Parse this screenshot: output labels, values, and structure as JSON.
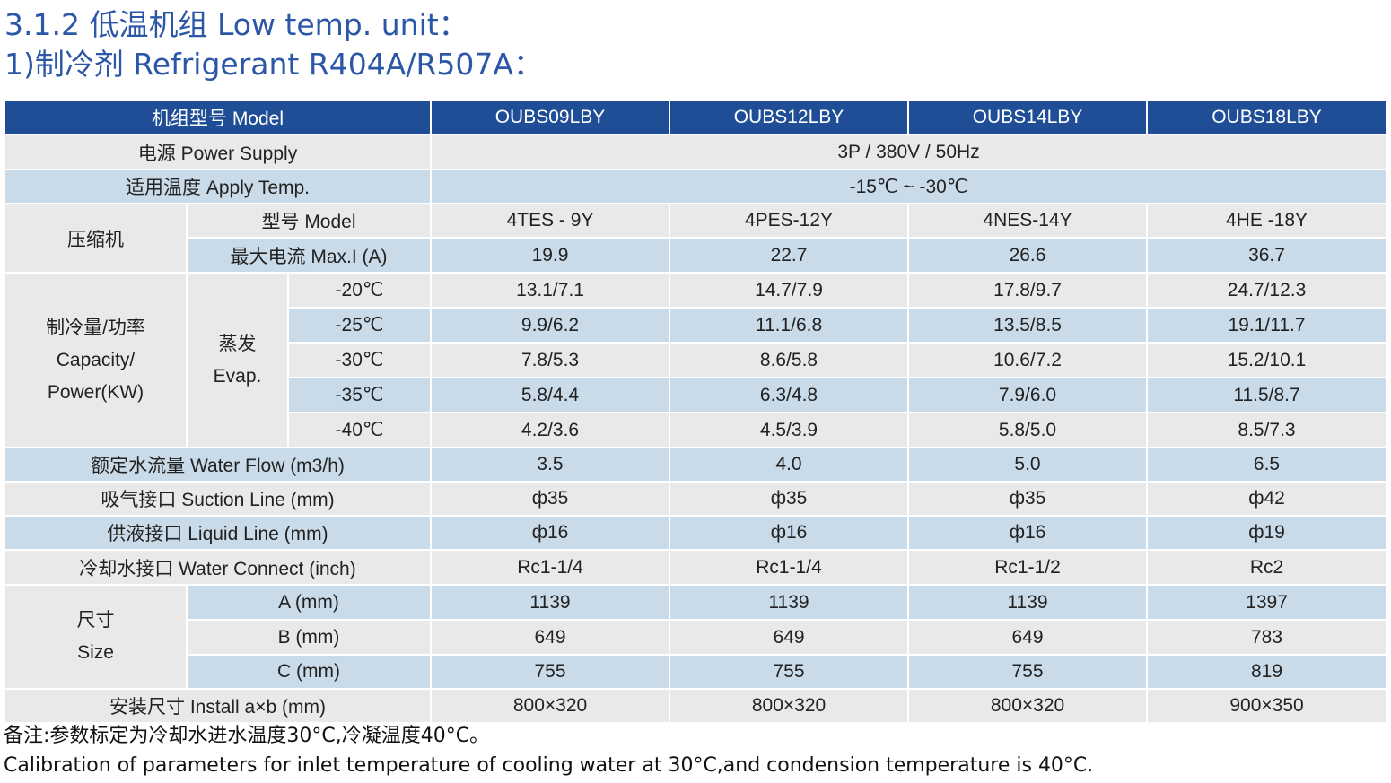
{
  "heading": {
    "line1": "3.1.2 低温机组 Low temp. unit：",
    "line2": "1)制冷剂 Refrigerant  R404A/R507A："
  },
  "table": {
    "model_label": "机组型号 Model",
    "models": [
      "OUBS09LBY",
      "OUBS12LBY",
      "OUBS14LBY",
      "OUBS18LBY"
    ],
    "power_supply": {
      "label": "电源 Power Supply",
      "value": "3P / 380V / 50Hz"
    },
    "apply_temp": {
      "label": "适用温度 Apply Temp.",
      "value": "-15℃ ~ -30℃"
    },
    "compressor": {
      "label": "压缩机",
      "model_label": "型号 Model",
      "models": [
        "4TES - 9Y",
        "4PES-12Y",
        "4NES-14Y",
        "4HE -18Y"
      ],
      "current_label": "最大电流 Max.I  (A)",
      "currents": [
        "19.9",
        "22.7",
        "26.6",
        "36.7"
      ]
    },
    "capacity": {
      "label_line1": "制冷量/功率",
      "label_line2": "Capacity/",
      "label_line3": "Power(KW)",
      "evap_line1": "蒸发",
      "evap_line2": "Evap.",
      "rows": [
        {
          "temp": "-20℃",
          "values": [
            "13.1/7.1",
            "14.7/7.9",
            "17.8/9.7",
            "24.7/12.3"
          ]
        },
        {
          "temp": "-25℃",
          "values": [
            "9.9/6.2",
            "11.1/6.8",
            "13.5/8.5",
            "19.1/11.7"
          ]
        },
        {
          "temp": "-30℃",
          "values": [
            "7.8/5.3",
            "8.6/5.8",
            "10.6/7.2",
            "15.2/10.1"
          ]
        },
        {
          "temp": "-35℃",
          "values": [
            "5.8/4.4",
            "6.3/4.8",
            "7.9/6.0",
            "11.5/8.7"
          ]
        },
        {
          "temp": "-40℃",
          "values": [
            "4.2/3.6",
            "4.5/3.9",
            "5.8/5.0",
            "8.5/7.3"
          ]
        }
      ]
    },
    "water_flow": {
      "label": "额定水流量 Water Flow (m3/h)",
      "values": [
        "3.5",
        "4.0",
        "5.0",
        "6.5"
      ]
    },
    "suction_line": {
      "label": "吸气接口 Suction Line  (mm)",
      "values": [
        "ф35",
        "ф35",
        "ф35",
        "ф42"
      ]
    },
    "liquid_line": {
      "label": "供液接口 Liquid Line  (mm)",
      "values": [
        "ф16",
        "ф16",
        "ф16",
        "ф19"
      ]
    },
    "water_connect": {
      "label": "冷却水接口 Water Connect (inch)",
      "values": [
        "Rc1-1/4",
        "Rc1-1/4",
        "Rc1-1/2",
        "Rc2"
      ]
    },
    "size": {
      "label_line1": "尺寸",
      "label_line2": "Size",
      "rows": [
        {
          "dim": "A  (mm)",
          "values": [
            "1139",
            "1139",
            "1139",
            "1397"
          ]
        },
        {
          "dim": "B  (mm)",
          "values": [
            "649",
            "649",
            "649",
            "783"
          ]
        },
        {
          "dim": "C  (mm)",
          "values": [
            "755",
            "755",
            "755",
            "819"
          ]
        }
      ]
    },
    "install": {
      "label": "安装尺寸 Install    a×b  (mm)",
      "values": [
        "800×320",
        "800×320",
        "800×320",
        "900×350"
      ]
    }
  },
  "notes": {
    "cn": "备注:参数标定为冷却水进水温度30°C,冷凝温度40°C。",
    "en": "Calibration of parameters for inlet temperature of cooling water at 30°C,and condension temperature is 40°C."
  }
}
